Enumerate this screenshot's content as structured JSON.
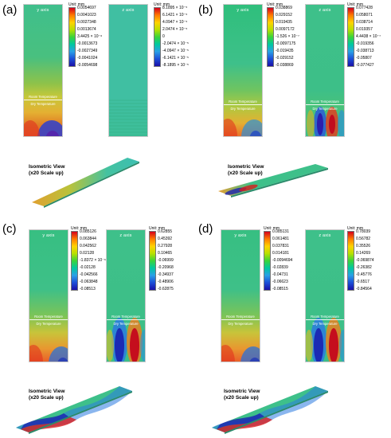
{
  "panels": [
    {
      "label": "(a)",
      "y_axis": "y axis",
      "z_axis": "z axis",
      "room": "Room Temperature",
      "dry": "Dry Temperature",
      "unit": "Unit: mm",
      "y_ticks": [
        "0.0054697",
        "0.0041023",
        "0.0027348",
        "0.0013674",
        "3.4425 × 10⁻⁶",
        "-0.0013673",
        "-0.0027349",
        "-0.0041024",
        "-0.0054698"
      ],
      "z_ticks": [
        "8.1895 × 10⁻⁵",
        "6.1421 × 10⁻⁵",
        "4.0947 × 10⁻⁵",
        "2.0474 × 10⁻⁵",
        "0",
        "-2.0474 × 10⁻⁵",
        "-4.0947 × 10⁻⁵",
        "-6.1421 × 10⁻⁵",
        "-8.1895 × 10⁻⁵"
      ],
      "iso_l1": "Isometric View",
      "iso_l2": "(x20 Scale up)"
    },
    {
      "label": "(b)",
      "y_axis": "y axis",
      "z_axis": "z axis",
      "room": "Room Temperature",
      "dry": "Dry Temperature",
      "unit": "Unit: mm",
      "y_ticks": [
        "0.038869",
        "0.029152",
        "0.019435",
        "0.0097172",
        "-1.526 × 10⁻⁷",
        "-0.0097175",
        "-0.019435",
        "-0.029152",
        "-0.038869"
      ],
      "z_ticks": [
        "0.077428",
        "0.058071",
        "0.038714",
        "0.019357",
        "4.4438 × 10⁻⁷",
        "-0.019356",
        "-0.038713",
        "-0.05807",
        "-0.077427"
      ],
      "iso_l1": "Isometric View",
      "iso_l2": "(x20 Scale up)"
    },
    {
      "label": "(c)",
      "y_axis": "y axis",
      "z_axis": "z axis",
      "room": "Room Temperature",
      "dry": "Dry Temperature",
      "unit": "Unit: mm",
      "y_ticks": [
        "0.085126",
        "0.063844",
        "0.042562",
        "0.02128",
        "-1.8372 × 10⁻⁶",
        "-0.02128",
        "-0.042566",
        "-0.063848",
        "-0.08513"
      ],
      "z_ticks": [
        "0.62855",
        "0.45392",
        "0.27928",
        "0.10465",
        "-0.06999",
        "-0.20968",
        "-0.34937",
        "-0.48906",
        "-0.62875"
      ],
      "iso_l1": "Isometric View",
      "iso_l2": "(x20 Scale up)"
    },
    {
      "label": "(d)",
      "y_axis": "y axis",
      "z_axis": "z axis",
      "room": "Room Temperature",
      "dry": "Dry Temperature",
      "unit": "Unit: mm",
      "y_ticks": [
        "0.085131",
        "0.061481",
        "0.037831",
        "0.014181",
        "-0.0094694",
        "-0.02839",
        "-0.04731",
        "-0.06623",
        "-0.08515"
      ],
      "z_ticks": [
        "0.78039",
        "0.56782",
        "0.35526",
        "0.14269",
        "-0.069874",
        "-0.26382",
        "-0.45776",
        "-0.6517",
        "-0.84564"
      ],
      "iso_l1": "Isometric View",
      "iso_l2": "(x20 Scale up)"
    }
  ],
  "colors": {
    "scale": [
      "#d4001c",
      "#ff7a00",
      "#ffd200",
      "#b8e000",
      "#3ad43a",
      "#00c8a0",
      "#2aa0e6",
      "#1c4fd8",
      "#1a10a8"
    ],
    "field_green": "#2fbf82",
    "field_teal": "#3cbfa0"
  }
}
